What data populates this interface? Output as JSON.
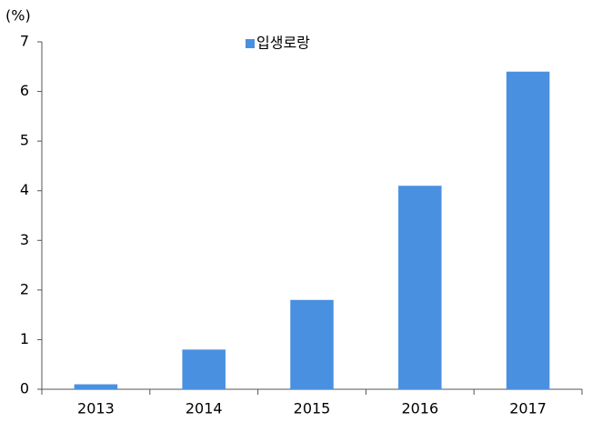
{
  "chart_data": {
    "type": "bar",
    "y_label": "(%)",
    "categories": [
      "2013",
      "2014",
      "2015",
      "2016",
      "2017"
    ],
    "series": [
      {
        "name": "입생로랑",
        "color": "#4a90e0",
        "values": [
          0.1,
          0.8,
          1.8,
          4.1,
          6.4
        ]
      }
    ],
    "ylim": [
      0,
      7
    ],
    "yticks": [
      0,
      1,
      2,
      3,
      4,
      5,
      6,
      7
    ],
    "grid": false,
    "legend": "top"
  }
}
